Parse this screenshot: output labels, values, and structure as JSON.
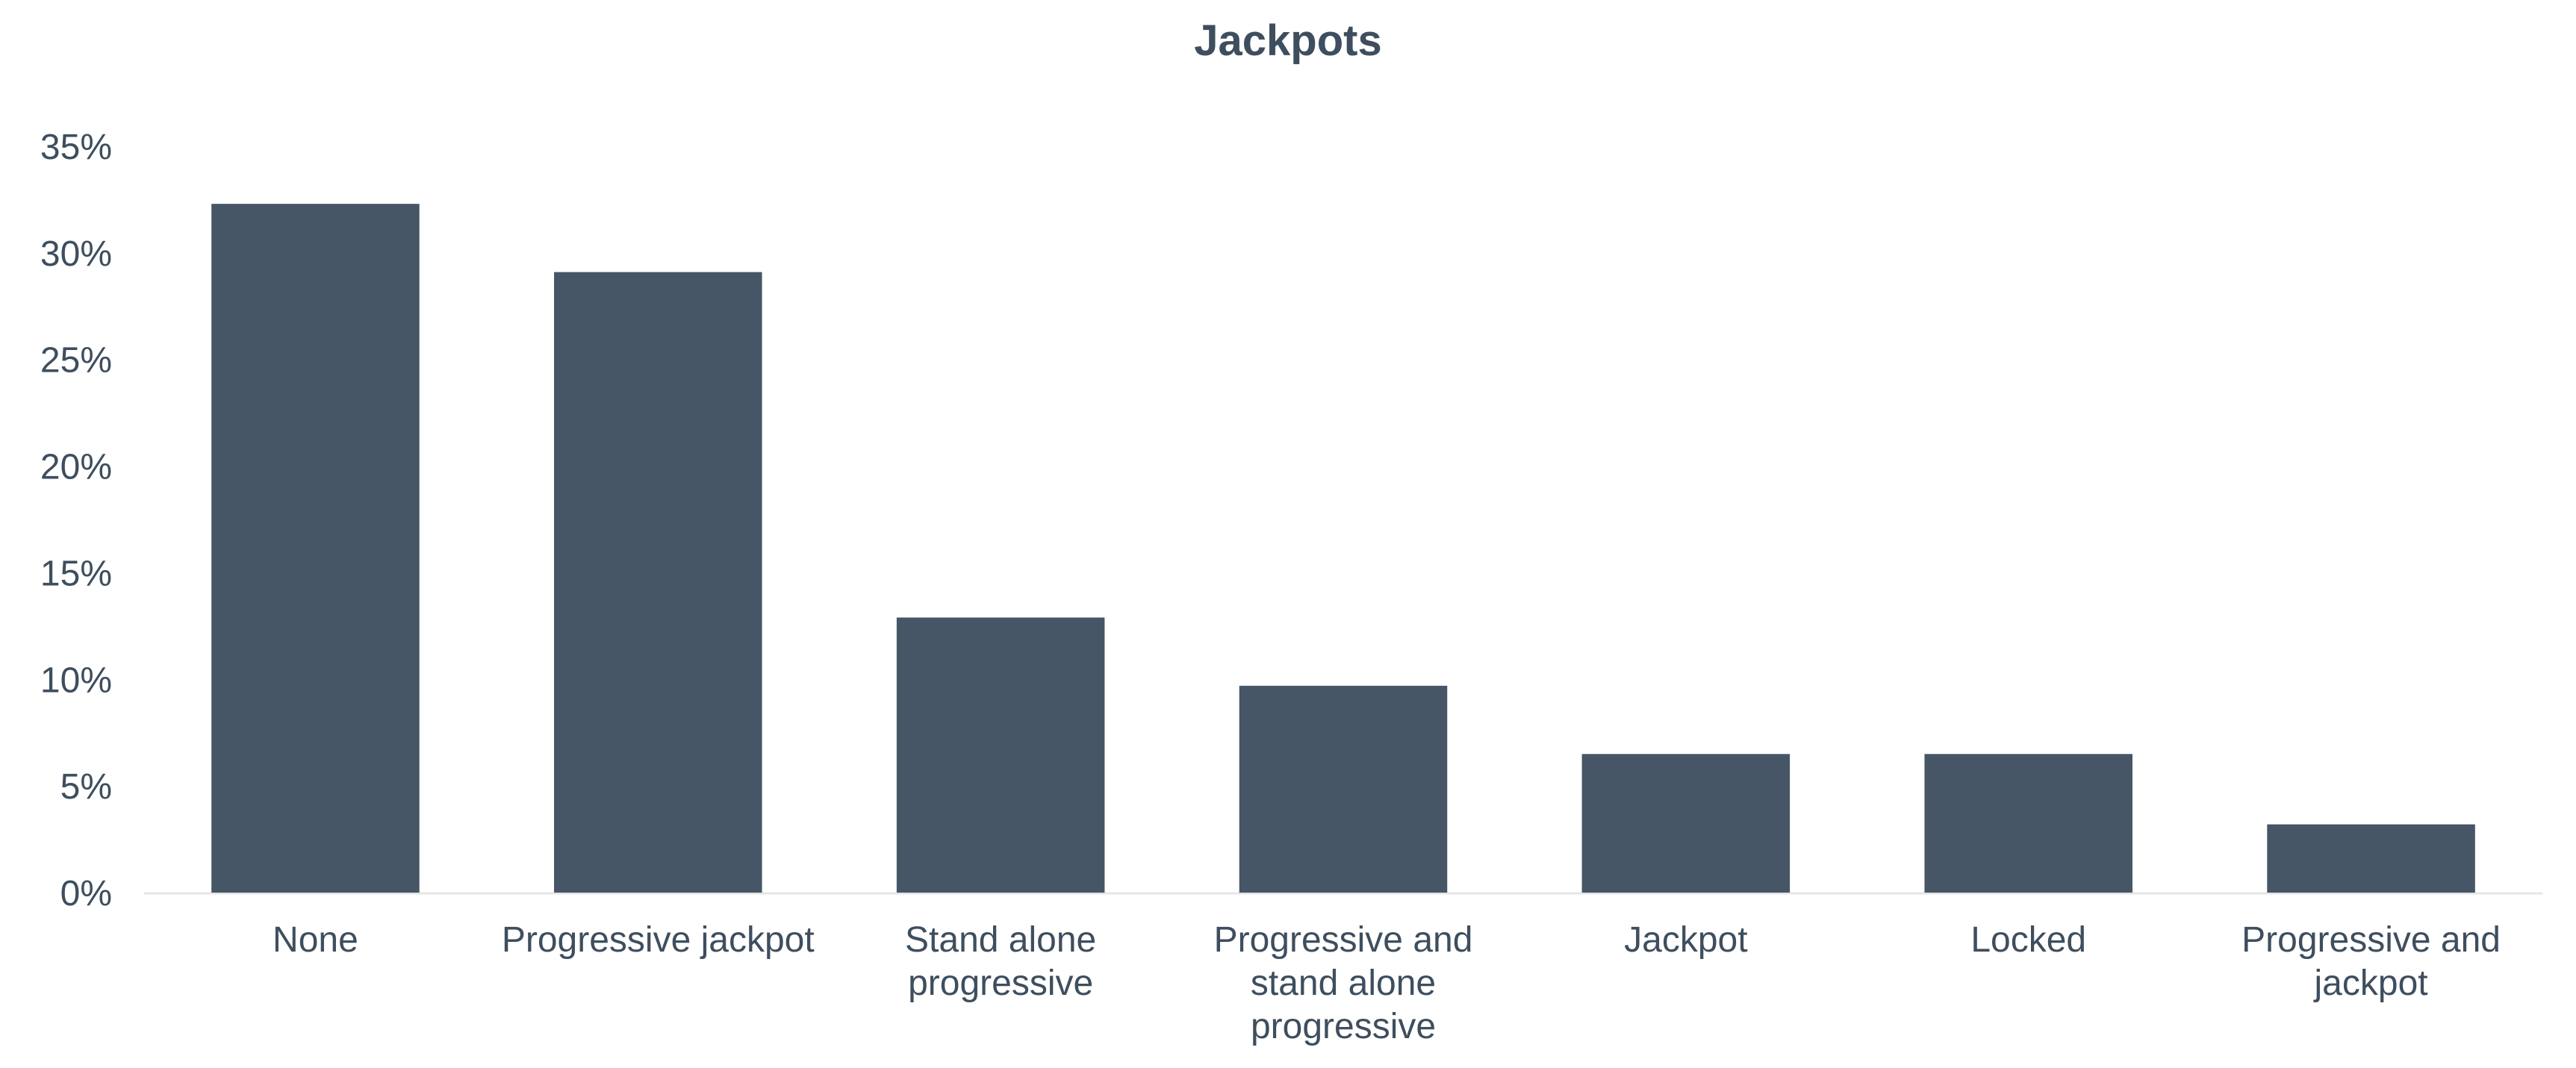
{
  "colors": {
    "bar": "#465666",
    "text": "#3e4e5e",
    "axis": "#e6e6e6",
    "background": "#ffffff"
  },
  "chart_data": {
    "type": "bar",
    "title": "Jackpots",
    "xlabel": "",
    "ylabel": "",
    "categories": [
      "None",
      "Progressive jackpot",
      "Stand alone progressive",
      "Progressive and stand alone progressive",
      "Jackpot",
      "Locked",
      "Progressive and jackpot"
    ],
    "category_lines": [
      [
        "None"
      ],
      [
        "Progressive jackpot"
      ],
      [
        "Stand alone",
        "progressive"
      ],
      [
        "Progressive and",
        "stand alone",
        "progressive"
      ],
      [
        "Jackpot"
      ],
      [
        "Locked"
      ],
      [
        "Progressive and",
        "jackpot"
      ]
    ],
    "values": [
      32.3,
      29.1,
      12.9,
      9.7,
      6.5,
      6.5,
      3.2
    ],
    "value_unit": "%",
    "ylim": [
      0,
      35
    ],
    "yticks": [
      0,
      5,
      10,
      15,
      20,
      25,
      30,
      35
    ],
    "ytick_labels": [
      "0%",
      "5%",
      "10%",
      "15%",
      "20%",
      "25%",
      "30%",
      "35%"
    ],
    "grid": false,
    "legend": "none"
  }
}
